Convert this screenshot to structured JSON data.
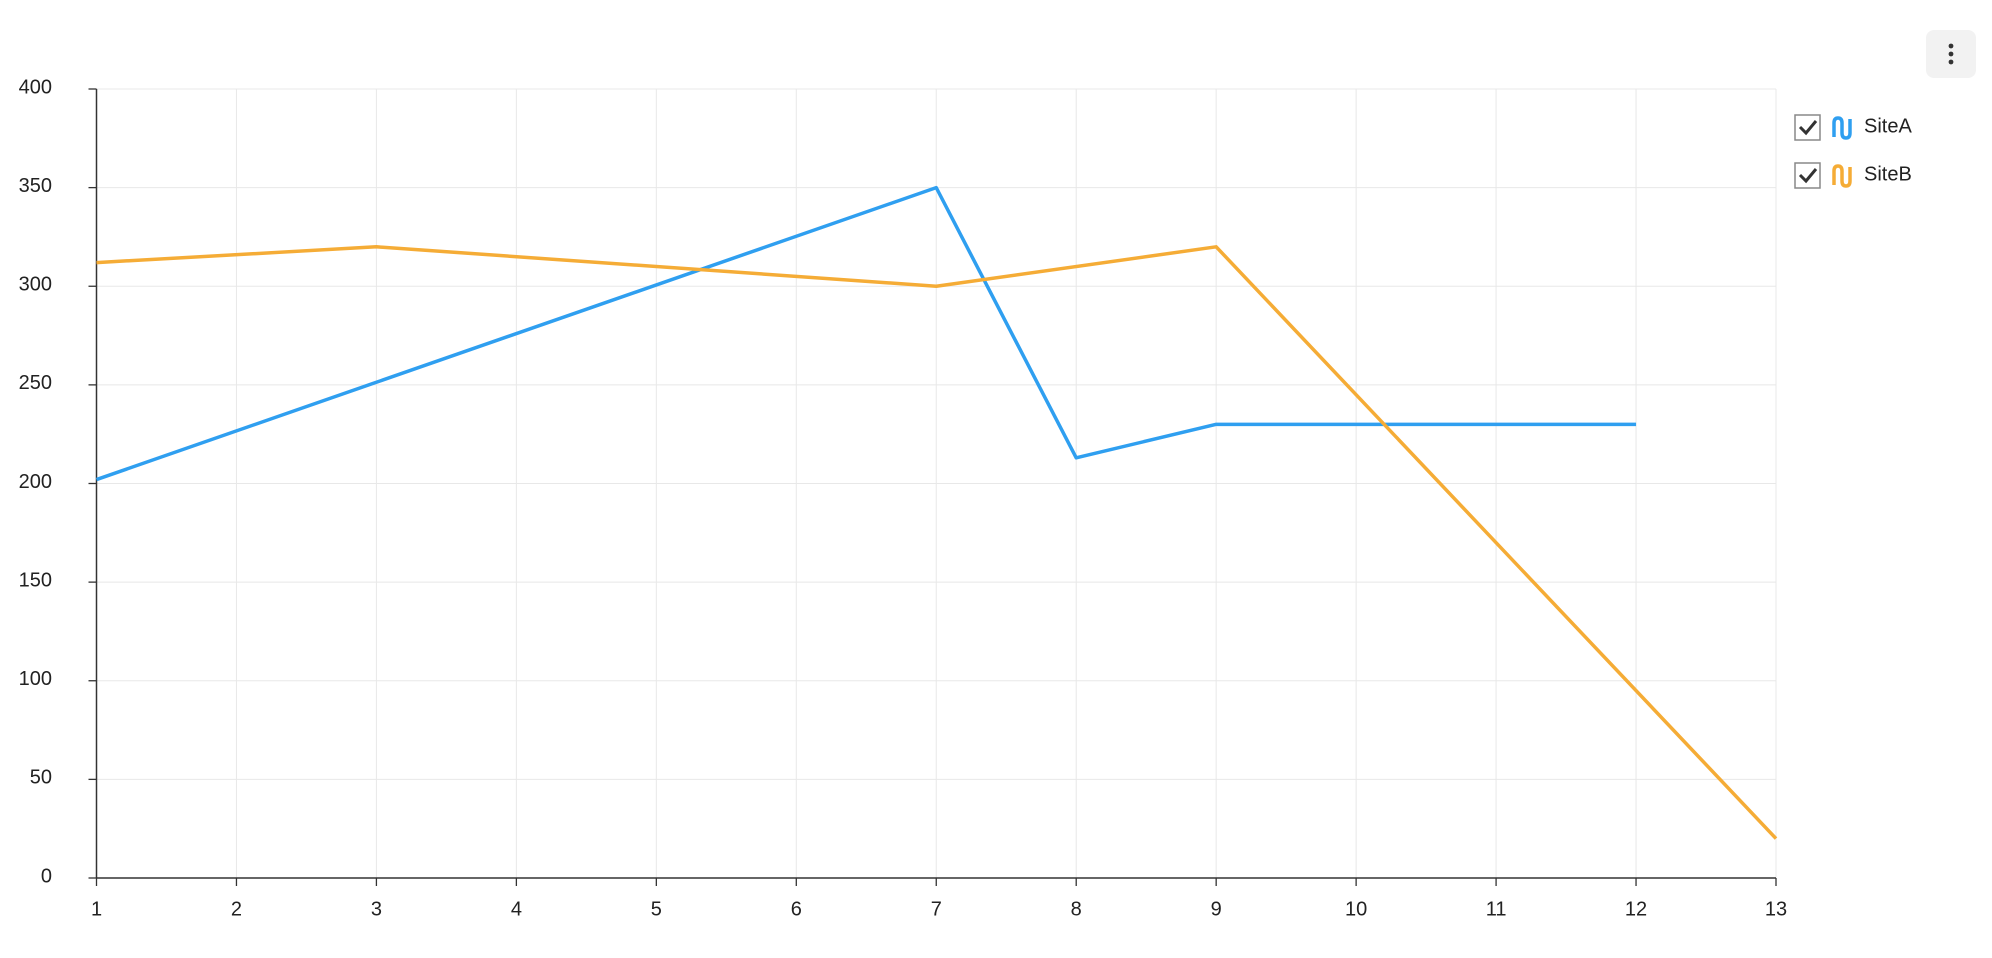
{
  "chart_data": {
    "type": "line",
    "xlim": [
      1,
      13
    ],
    "xticks": [
      1,
      2,
      3,
      4,
      5,
      6,
      7,
      8,
      9,
      10,
      11,
      12,
      13
    ],
    "ylim": [
      0,
      400
    ],
    "yticks": [
      0,
      50,
      100,
      150,
      200,
      250,
      300,
      350,
      400
    ],
    "grid": true,
    "legend": "right",
    "series": [
      {
        "name": "SiteA",
        "color": "#2f9ff0",
        "x": [
          1,
          7,
          8,
          9,
          12
        ],
        "values": [
          202,
          350,
          213,
          230,
          230
        ]
      },
      {
        "name": "SiteB",
        "color": "#f5ac36",
        "x": [
          1,
          3,
          7,
          9,
          13
        ],
        "values": [
          312,
          320,
          300,
          320,
          20
        ]
      }
    ]
  }
}
